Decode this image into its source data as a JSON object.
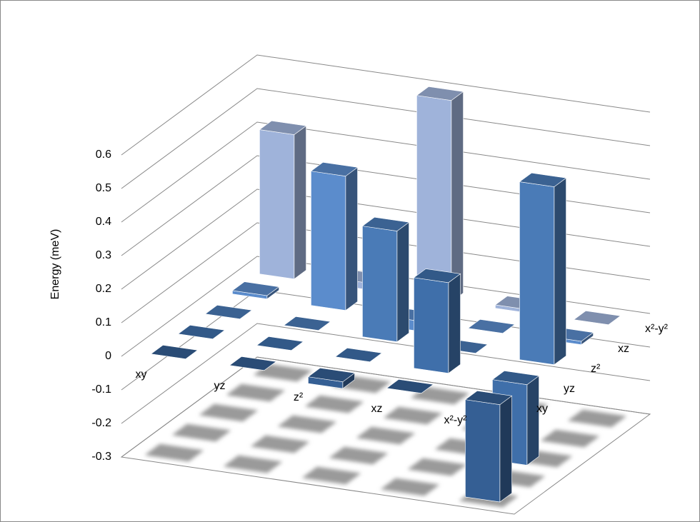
{
  "chart_data": {
    "type": "bar3d",
    "y_axis_label": "Energy (meV)",
    "categories": [
      "xy",
      "yz",
      "z²",
      "xz",
      "x²-y²"
    ],
    "series": [
      {
        "name": "xy",
        "color": "#355f94",
        "values": [
          0,
          0,
          -0.02,
          0,
          -0.29
        ]
      },
      {
        "name": "yz",
        "color": "#3f6faa",
        "values": [
          0,
          0,
          0,
          0.27,
          -0.24
        ]
      },
      {
        "name": "z²",
        "color": "#4a7bb7",
        "values": [
          0,
          0,
          0.33,
          0,
          0.53
        ]
      },
      {
        "name": "xz",
        "color": "#5b8ccc",
        "values": [
          0.01,
          0.4,
          -0.03,
          0,
          0.01
        ]
      },
      {
        "name": "x²-y²",
        "color": "#9fb3da",
        "values": [
          0.43,
          0.02,
          0.6,
          0.01,
          0
        ]
      }
    ],
    "ylim": [
      -0.3,
      0.6
    ],
    "yticks": [
      -0.3,
      -0.2,
      -0.1,
      0,
      0.1,
      0.2,
      0.3,
      0.4,
      0.5,
      0.6
    ],
    "grid": true
  }
}
